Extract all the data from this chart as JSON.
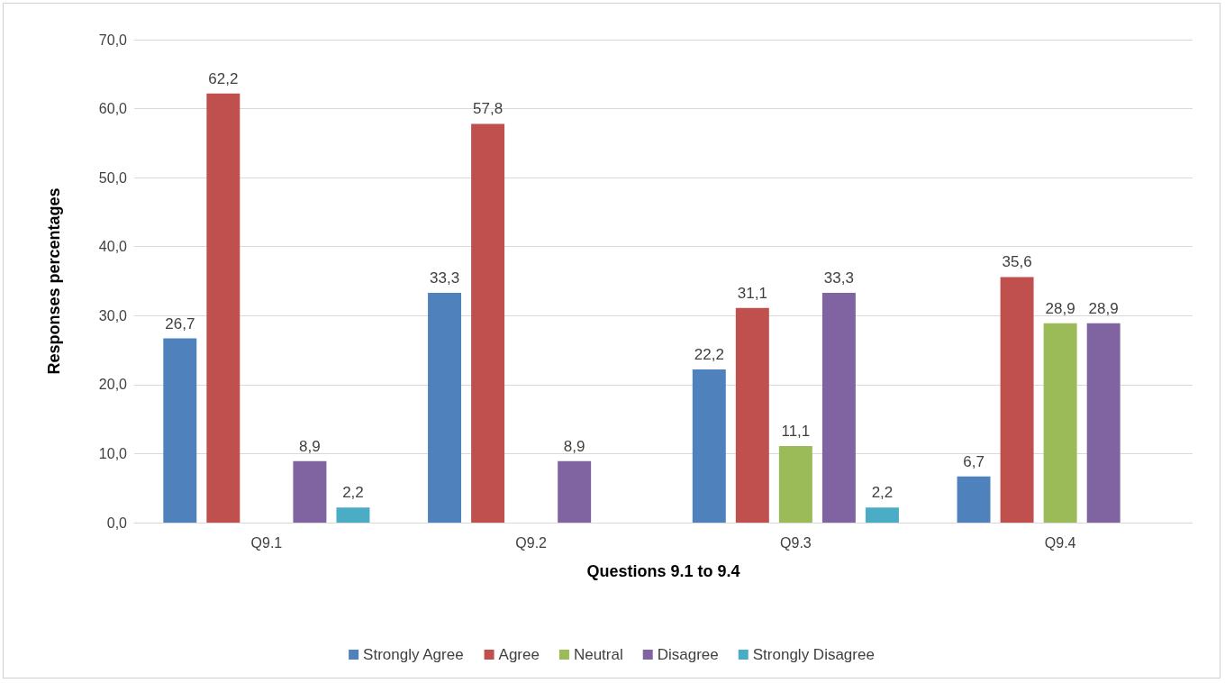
{
  "chart_data": {
    "type": "bar",
    "xlabel": "Questions 9.1 to 9.4",
    "ylabel": "Responses percentages",
    "categories": [
      "Q9.1",
      "Q9.2",
      "Q9.3",
      "Q9.4"
    ],
    "series": [
      {
        "name": "Strongly Agree",
        "color": "#4f81bd",
        "values": [
          26.7,
          33.3,
          22.2,
          6.7
        ],
        "value_labels": [
          "26,7",
          "33,3",
          "22,2",
          "6,7"
        ]
      },
      {
        "name": "Agree",
        "color": "#c0504d",
        "values": [
          62.2,
          57.8,
          31.1,
          35.6
        ],
        "value_labels": [
          "62,2",
          "57,8",
          "31,1",
          "35,6"
        ]
      },
      {
        "name": "Neutral",
        "color": "#9bbb59",
        "values": [
          null,
          null,
          11.1,
          28.9
        ],
        "value_labels": [
          null,
          null,
          "11,1",
          "28,9"
        ]
      },
      {
        "name": "Disagree",
        "color": "#8064a2",
        "values": [
          8.9,
          8.9,
          33.3,
          28.9
        ],
        "value_labels": [
          "8,9",
          "8,9",
          "33,3",
          "28,9"
        ]
      },
      {
        "name": "Strongly Disagree",
        "color": "#4bacc6",
        "values": [
          2.2,
          null,
          2.2,
          null
        ],
        "value_labels": [
          "2,2",
          null,
          "2,2",
          null
        ]
      }
    ],
    "ylim": [
      0,
      70
    ],
    "yticks": [
      {
        "value": 0,
        "label": "0,0"
      },
      {
        "value": 10,
        "label": "10,0"
      },
      {
        "value": 20,
        "label": "20,0"
      },
      {
        "value": 30,
        "label": "30,0"
      },
      {
        "value": 40,
        "label": "40,0"
      },
      {
        "value": 50,
        "label": "50,0"
      },
      {
        "value": 60,
        "label": "60,0"
      },
      {
        "value": 70,
        "label": "70,0"
      }
    ],
    "grid": "y",
    "legend": "bottom"
  }
}
